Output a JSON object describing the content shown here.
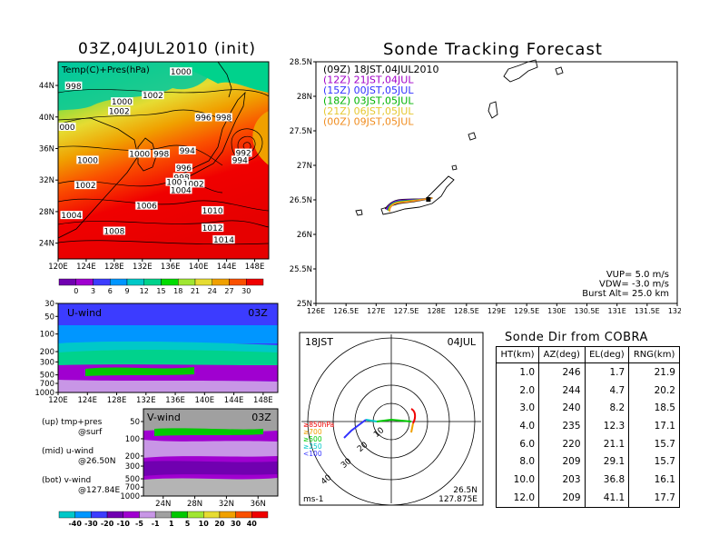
{
  "map_panel": {
    "title": "03Z,04JUL2010 (init)",
    "label": "Temp(C)+Pres(hPa)",
    "lat_ticks": [
      "44N",
      "40N",
      "36N",
      "32N",
      "28N",
      "24N"
    ],
    "lon_ticks": [
      "120E",
      "124E",
      "128E",
      "132E",
      "136E",
      "140E",
      "144E",
      "148E"
    ],
    "isobars": [
      {
        "label": "1000",
        "lon": 137.5,
        "lat": 45.6
      },
      {
        "label": "998",
        "lon": 122.2,
        "lat": 43.8
      },
      {
        "label": "1002",
        "lon": 133.5,
        "lat": 42.6
      },
      {
        "label": "1000",
        "lon": 129.1,
        "lat": 41.8
      },
      {
        "label": "1002",
        "lon": 128.7,
        "lat": 40.6
      },
      {
        "label": "996",
        "lon": 140.7,
        "lat": 39.8
      },
      {
        "label": "998",
        "lon": 143.6,
        "lat": 39.8
      },
      {
        "label": "000",
        "lon": 121.3,
        "lat": 38.6
      },
      {
        "label": "994",
        "lon": 138.4,
        "lat": 35.6
      },
      {
        "label": "992",
        "lon": 146.4,
        "lat": 35.3
      },
      {
        "label": "994",
        "lon": 145.9,
        "lat": 34.4
      },
      {
        "label": "1000",
        "lon": 124.2,
        "lat": 34.4
      },
      {
        "label": "1000",
        "lon": 131.6,
        "lat": 35.2
      },
      {
        "label": "998",
        "lon": 134.7,
        "lat": 35.2
      },
      {
        "label": "996",
        "lon": 137.9,
        "lat": 33.4
      },
      {
        "label": "998",
        "lon": 137.6,
        "lat": 32.2
      },
      {
        "label": "1000",
        "lon": 136.9,
        "lat": 31.6
      },
      {
        "label": "1002",
        "lon": 139.3,
        "lat": 31.4
      },
      {
        "label": "1004",
        "lon": 137.5,
        "lat": 30.6
      },
      {
        "label": "1002",
        "lon": 123.9,
        "lat": 31.2
      },
      {
        "label": "1006",
        "lon": 132.6,
        "lat": 28.6
      },
      {
        "label": "1010",
        "lon": 142.0,
        "lat": 28.0
      },
      {
        "label": "1004",
        "lon": 121.9,
        "lat": 27.4
      },
      {
        "label": "1012",
        "lon": 142.0,
        "lat": 25.8
      },
      {
        "label": "1008",
        "lon": 128.0,
        "lat": 25.4
      },
      {
        "label": "1014",
        "lon": 143.6,
        "lat": 24.3
      }
    ],
    "colorbar": {
      "labels": [
        "0",
        "3",
        "6",
        "9",
        "12",
        "15",
        "18",
        "21",
        "24",
        "27",
        "30"
      ],
      "colors": [
        "#7000b0",
        "#a000d0",
        "#3c3cff",
        "#0096ff",
        "#00c8c8",
        "#00d28c",
        "#00dc00",
        "#a0e632",
        "#e6dc32",
        "#f0a000",
        "#fa5000",
        "#f00000"
      ]
    }
  },
  "u_panel": {
    "label": "U-wind",
    "time": "03Z",
    "p_ticks": [
      "30",
      "50",
      "100",
      "200",
      "300",
      "500",
      "700",
      "1000"
    ],
    "lon_ticks": [
      "120E",
      "124E",
      "128E",
      "132E",
      "136E",
      "140E",
      "144E",
      "148E"
    ]
  },
  "v_panel": {
    "label": "V-wind",
    "time": "03Z",
    "p_ticks": [
      "50",
      "100",
      "200",
      "300",
      "500",
      "700",
      "1000"
    ],
    "lat_ticks": [
      "24N",
      "28N",
      "32N",
      "36N"
    ]
  },
  "notes": [
    {
      "a": "(up) tmp+pres",
      "b": "@surf"
    },
    {
      "a": "(mid) u-wind",
      "b": "@26.50N"
    },
    {
      "a": "(bot) v-wind",
      "b": "@127.84E"
    }
  ],
  "wind_colorbar": {
    "labels": [
      "-40",
      "-30",
      "-20",
      "-10",
      "-5",
      "-1",
      "1",
      "5",
      "10",
      "20",
      "30",
      "40"
    ],
    "colors": [
      "#00c8c8",
      "#0096ff",
      "#3c3cff",
      "#7000b0",
      "#a000d0",
      "#c896e6",
      "#a0a0a0",
      "#00c800",
      "#a0e632",
      "#e6dc32",
      "#f0a000",
      "#fa5000",
      "#f00000"
    ]
  },
  "track_panel": {
    "title": "Sonde Tracking Forecast",
    "lat_ticks": [
      "28.5N",
      "28N",
      "27.5N",
      "27N",
      "26.5N",
      "26N",
      "25.5N",
      "25N"
    ],
    "lon_ticks": [
      "126E",
      "126.5E",
      "127E",
      "127.5E",
      "128E",
      "128.5E",
      "129E",
      "129.5E",
      "130E",
      "130.5E",
      "131E",
      "131.5E",
      "132E"
    ],
    "legend": [
      {
        "text": "(09Z)  18JST,04JUL2010",
        "color": "#000000"
      },
      {
        "text": "(12Z)  21JST,04JUL",
        "color": "#a000c8"
      },
      {
        "text": "(15Z)  00JST,05JUL",
        "color": "#3232ff"
      },
      {
        "text": "(18Z)  03JST,05JUL",
        "color": "#00b400"
      },
      {
        "text": "(21Z)  06JST,05JUL",
        "color": "#e6c832"
      },
      {
        "text": "(00Z)  09JST,05JUL",
        "color": "#f08c1e"
      }
    ],
    "params": [
      "VUP=  5.0  m/s",
      "VDW= -3.0  m/s",
      "Burst Alt=  25.0  km"
    ],
    "launch": {
      "lon": 127.875,
      "lat": 26.5
    }
  },
  "polar_panel": {
    "left_label": "18JST",
    "right_label": "04JUL",
    "bottom_left": "ms-1",
    "loc1": "26.5N",
    "loc2": "127.875E",
    "ring_labels": [
      "10",
      "20",
      "30",
      "40"
    ],
    "legend": [
      {
        "text": "≥850hPa",
        "color": "#f00000"
      },
      {
        "text": "≥700",
        "color": "#f0a000"
      },
      {
        "text": "≥500",
        "color": "#00c800"
      },
      {
        "text": "≥250",
        "color": "#00c8c8"
      },
      {
        "text": "<100",
        "color": "#3232ff"
      }
    ]
  },
  "direction_table": {
    "title": "Sonde Dir from COBRA",
    "headers": [
      "HT(km)",
      "AZ(deg)",
      "EL(deg)",
      "RNG(km)"
    ],
    "rows": [
      [
        "1.0",
        "246",
        "1.7",
        "21.9"
      ],
      [
        "2.0",
        "244",
        "4.7",
        "20.2"
      ],
      [
        "3.0",
        "240",
        "8.2",
        "18.5"
      ],
      [
        "4.0",
        "235",
        "12.3",
        "17.1"
      ],
      [
        "6.0",
        "220",
        "21.1",
        "15.7"
      ],
      [
        "8.0",
        "209",
        "29.1",
        "15.7"
      ],
      [
        "10.0",
        "203",
        "36.8",
        "16.1"
      ],
      [
        "12.0",
        "209",
        "41.1",
        "17.7"
      ]
    ]
  }
}
